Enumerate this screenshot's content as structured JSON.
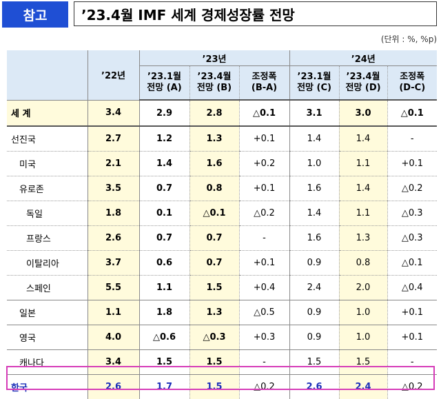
{
  "badge": "참고",
  "title": "’23.4월 IMF 세계 경제성장률 전망",
  "unit": "(단위 : %, %p)",
  "header": {
    "col_22": "’22년",
    "group_23": "’23년",
    "group_24": "’24년",
    "c23a_l1": "’23.1월",
    "c23a_l2": "전망 (A)",
    "c23b_l1": "’23.4월",
    "c23b_l2": "전망 (B)",
    "c23d_l1": "조정폭",
    "c23d_l2": "(B-A)",
    "c24c_l1": "’23.1월",
    "c24c_l2": "전망 (C)",
    "c24d_l1": "’23.4월",
    "c24d_l2": "전망 (D)",
    "c24e_l1": "조정폭",
    "c24e_l2": "(D-C)"
  },
  "rows": [
    {
      "name": "세  계",
      "v22": "3.4",
      "a": "2.9",
      "b": "2.8",
      "ba": "△0.1",
      "c": "3.1",
      "d": "3.0",
      "dc": "△0.1"
    },
    {
      "name": "선진국",
      "v22": "2.7",
      "a": "1.2",
      "b": "1.3",
      "ba": "+0.1",
      "c": "1.4",
      "d": "1.4",
      "dc": "-"
    },
    {
      "name": "미국",
      "v22": "2.1",
      "a": "1.4",
      "b": "1.6",
      "ba": "+0.2",
      "c": "1.0",
      "d": "1.1",
      "dc": "+0.1"
    },
    {
      "name": "유로존",
      "v22": "3.5",
      "a": "0.7",
      "b": "0.8",
      "ba": "+0.1",
      "c": "1.6",
      "d": "1.4",
      "dc": "△0.2"
    },
    {
      "name": "독일",
      "v22": "1.8",
      "a": "0.1",
      "b": "△0.1",
      "ba": "△0.2",
      "c": "1.4",
      "d": "1.1",
      "dc": "△0.3"
    },
    {
      "name": "프랑스",
      "v22": "2.6",
      "a": "0.7",
      "b": "0.7",
      "ba": "-",
      "c": "1.6",
      "d": "1.3",
      "dc": "△0.3"
    },
    {
      "name": "이탈리아",
      "v22": "3.7",
      "a": "0.6",
      "b": "0.7",
      "ba": "+0.1",
      "c": "0.9",
      "d": "0.8",
      "dc": "△0.1"
    },
    {
      "name": "스페인",
      "v22": "5.5",
      "a": "1.1",
      "b": "1.5",
      "ba": "+0.4",
      "c": "2.4",
      "d": "2.0",
      "dc": "△0.4"
    },
    {
      "name": "일본",
      "v22": "1.1",
      "a": "1.8",
      "b": "1.3",
      "ba": "△0.5",
      "c": "0.9",
      "d": "1.0",
      "dc": "+0.1"
    },
    {
      "name": "영국",
      "v22": "4.0",
      "a": "△0.6",
      "b": "△0.3",
      "ba": "+0.3",
      "c": "0.9",
      "d": "1.0",
      "dc": "+0.1"
    },
    {
      "name": "캐나다",
      "v22": "3.4",
      "a": "1.5",
      "b": "1.5",
      "ba": "-",
      "c": "1.5",
      "d": "1.5",
      "dc": "-"
    },
    {
      "name": "한국",
      "v22": "2.6",
      "a": "1.7",
      "b": "1.5",
      "ba": "△0.2",
      "c": "2.6",
      "d": "2.4",
      "dc": "△0.2"
    }
  ]
}
